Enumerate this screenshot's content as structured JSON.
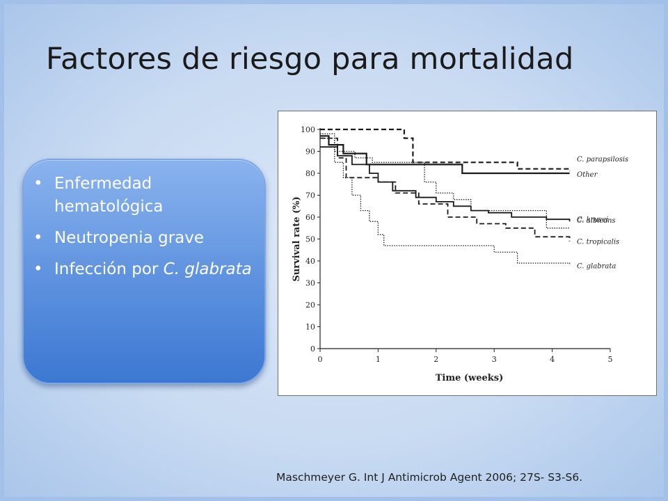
{
  "slide": {
    "title": "Factores de riesgo para mortalidad",
    "bullets": [
      {
        "text": "Enfermedad hematológica",
        "italic": ""
      },
      {
        "text": "Neutropenia grave",
        "italic": ""
      },
      {
        "text": "Infección por ",
        "italic": "C. glabrata"
      }
    ],
    "reference": "Maschmeyer G. Int J Antimicrob Agent 2006; 27S- S3-S6."
  },
  "chart_data": {
    "type": "line",
    "step": true,
    "title": "",
    "xlabel": "Time (weeks)",
    "ylabel": "Survival rate (%)",
    "xlim": [
      0,
      5
    ],
    "ylim": [
      0,
      100
    ],
    "xticks": [
      0,
      1,
      2,
      3,
      4,
      5
    ],
    "yticks": [
      0,
      10,
      20,
      30,
      40,
      50,
      60,
      70,
      80,
      90,
      100
    ],
    "grid": false,
    "legend": "labels at line ends (right)",
    "series": [
      {
        "name": "C. parapsilosis",
        "style": "dashed",
        "width": 2.2,
        "x": [
          0,
          1.45,
          1.6,
          3.4,
          4.3
        ],
        "y": [
          100,
          96,
          85,
          82,
          81
        ]
      },
      {
        "name": "Other",
        "style": "solid",
        "width": 2.2,
        "x": [
          0,
          0.15,
          0.4,
          0.8,
          2.45,
          4.3
        ],
        "y": [
          97,
          93,
          89,
          84,
          80,
          80
        ]
      },
      {
        "name": "C. albicans",
        "style": "dotted",
        "width": 1.3,
        "x": [
          0,
          0.25,
          0.6,
          0.9,
          1.8,
          2.0,
          2.3,
          2.6,
          3.5,
          3.9,
          4.3
        ],
        "y": [
          98,
          90,
          87,
          85,
          76,
          71,
          68,
          63,
          63,
          55,
          55
        ]
      },
      {
        "name": "C. krusei",
        "style": "solid",
        "width": 1.8,
        "x": [
          0,
          0.3,
          0.55,
          0.85,
          1.0,
          1.25,
          1.65,
          2.0,
          2.3,
          2.6,
          2.9,
          3.3,
          3.9,
          4.3
        ],
        "y": [
          92,
          88,
          84,
          80,
          76,
          72,
          69,
          67,
          65,
          63,
          62,
          60,
          59,
          58
        ]
      },
      {
        "name": "C. tropicalis",
        "style": "dashed",
        "width": 1.8,
        "x": [
          0,
          0.3,
          0.45,
          1.0,
          1.3,
          1.7,
          2.2,
          2.7,
          3.2,
          3.7,
          4.3
        ],
        "y": [
          96,
          87,
          78,
          76,
          71,
          66,
          60,
          57,
          55,
          51,
          49
        ]
      },
      {
        "name": "C. glabrata",
        "style": "dotted",
        "width": 1.3,
        "x": [
          0,
          0.25,
          0.4,
          0.55,
          0.7,
          0.85,
          1.0,
          1.1,
          3.0,
          3.4,
          4.3
        ],
        "y": [
          96,
          85,
          78,
          70,
          63,
          58,
          52,
          47,
          44,
          39,
          38
        ]
      }
    ]
  }
}
